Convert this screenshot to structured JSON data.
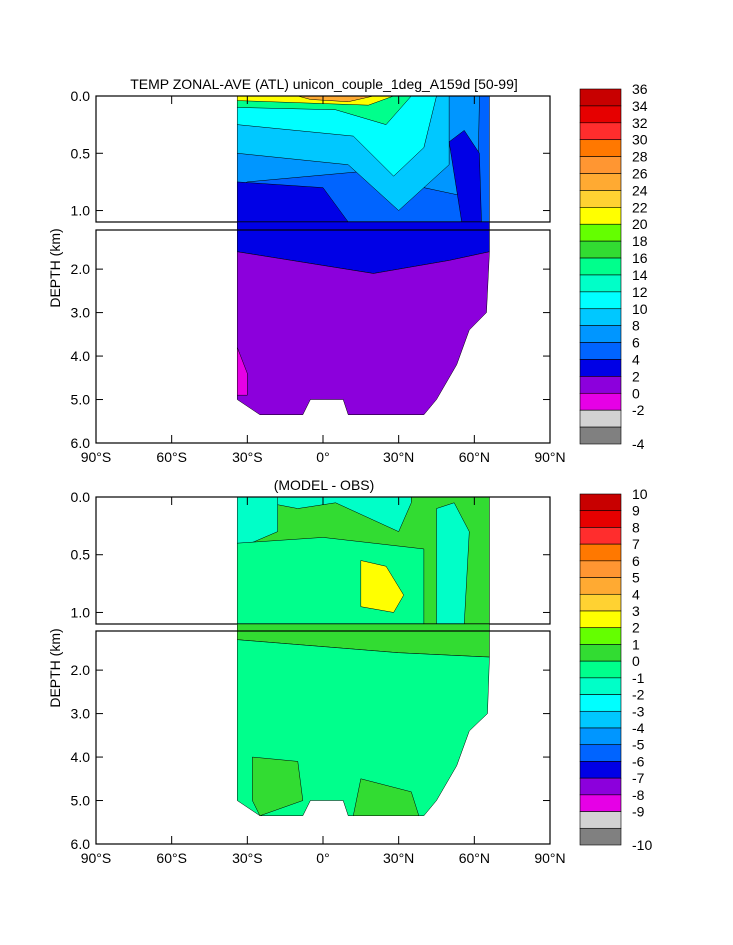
{
  "chart_data": [
    {
      "type": "heatmap",
      "title": "TEMP ZONAL-AVE (ATL) unicon_couple_1deg_A159d [50-99]",
      "ylabel": "DEPTH (km)",
      "xlabel": "",
      "x_ticks": [
        "90°S",
        "60°S",
        "30°S",
        "0°",
        "30°N",
        "60°N",
        "90°N"
      ],
      "xlim": [
        -90,
        90
      ],
      "upper_panel": {
        "ylim": [
          0.0,
          1.1
        ],
        "ticks": [
          "0.0",
          "0.5",
          "1.0"
        ]
      },
      "lower_panel": {
        "ylim": [
          1.1,
          6.0
        ],
        "ticks": [
          "2.0",
          "3.0",
          "4.0",
          "5.0",
          "6.0"
        ]
      },
      "colorbar": {
        "labels": [
          "36",
          "34",
          "32",
          "30",
          "28",
          "26",
          "24",
          "22",
          "20",
          "18",
          "16",
          "14",
          "12",
          "10",
          "8",
          "6",
          "4",
          "2",
          "0",
          "-2",
          "-4"
        ],
        "colors": [
          "#c80000",
          "#e60000",
          "#ff2d2d",
          "#ff7800",
          "#ff9632",
          "#ffaa32",
          "#ffd232",
          "#ffff00",
          "#64ff00",
          "#32dc32",
          "#00ff8c",
          "#00ffc8",
          "#00ffff",
          "#00c8ff",
          "#0096ff",
          "#0064ff",
          "#0000e6",
          "#8c00dc",
          "#e600e6",
          "#d2d2d2",
          "#808080"
        ]
      },
      "approx_field_degC": {
        "latitude_extent": [
          -34,
          66
        ],
        "surface_0_0.1km": "18-28, warmest near equator",
        "thermocline_0.2_1.0km": "8-14, deepest warm bowl near 30N",
        "deep_1.5_3km": "4-6 band below 1.2km, 2-4 below",
        "abyss_3_5.4km": "2-4, <2 near 30S bottom"
      }
    },
    {
      "type": "heatmap",
      "title": "(MODEL - OBS)",
      "ylabel": "DEPTH (km)",
      "xlabel": "",
      "x_ticks": [
        "90°S",
        "60°S",
        "30°S",
        "0°",
        "30°N",
        "60°N",
        "90°N"
      ],
      "xlim": [
        -90,
        90
      ],
      "upper_panel": {
        "ylim": [
          0.0,
          1.1
        ],
        "ticks": [
          "0.0",
          "0.5",
          "1.0"
        ]
      },
      "lower_panel": {
        "ylim": [
          1.1,
          6.0
        ],
        "ticks": [
          "2.0",
          "3.0",
          "4.0",
          "5.0",
          "6.0"
        ]
      },
      "colorbar": {
        "labels": [
          "10",
          "9",
          "8",
          "7",
          "6",
          "5",
          "4",
          "3",
          "2",
          "1",
          "0",
          "-1",
          "-2",
          "-3",
          "-4",
          "-5",
          "-6",
          "-7",
          "-8",
          "-9",
          "-10"
        ],
        "colors": [
          "#c80000",
          "#e60000",
          "#ff2d2d",
          "#ff7800",
          "#ff9632",
          "#ffaa32",
          "#ffd232",
          "#ffff00",
          "#64ff00",
          "#32dc32",
          "#00ff8c",
          "#00ffc8",
          "#00ffff",
          "#00c8ff",
          "#0096ff",
          "#0064ff",
          "#0000e6",
          "#8c00dc",
          "#e600e6",
          "#d2d2d2",
          "#808080"
        ]
      },
      "approx_field_degC": {
        "near_surface": "-1 to 0 (cool bias) south of 15N",
        "thermocline_25N_0.6_1.0km": "2 to 3 warm bias",
        "most_of_interior": "0 to 2",
        "deep_south_4_5km": "1 to 2"
      }
    }
  ]
}
